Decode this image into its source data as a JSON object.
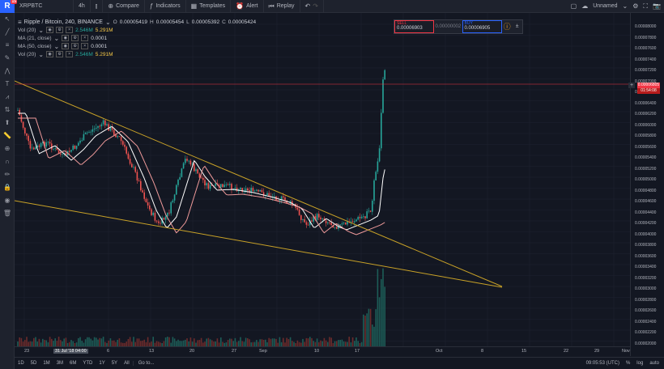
{
  "app": {
    "logo_letter": "R",
    "badge": "15"
  },
  "toolbar": {
    "symbol": "XRPBTC",
    "interval": "4h",
    "compare": "Compare",
    "indicators": "Indicators",
    "templates": "Templates",
    "alert": "Alert",
    "replay": "Replay",
    "layout_name": "Unnamed"
  },
  "legend": {
    "title": "Ripple / Bitcoin, 240, BINANCE",
    "o_label": "O",
    "o_val": "0.00005419",
    "h_label": "H",
    "h_val": "0.00005454",
    "l_label": "L",
    "l_val": "0.00005392",
    "c_label": "C",
    "c_val": "0.00005424",
    "rows": [
      {
        "name": "Vol (20)",
        "v1": "2.546M",
        "v2": "5.291M"
      },
      {
        "name": "MA (21, close)",
        "v1": "0.0001",
        "v2": ""
      },
      {
        "name": "MA (50, close)",
        "v1": "0.0001",
        "v2": ""
      },
      {
        "name": "Vol (20)",
        "v1": "2.546M",
        "v2": "5.291M"
      }
    ]
  },
  "trade": {
    "sell_label": "SELL",
    "sell_price": "0.00006903",
    "spread": "0.00000002",
    "buy_label": "BUY",
    "buy_price": "0.00006905"
  },
  "price_axis": {
    "labels": [
      "0.00008000",
      "0.00007800",
      "0.00007600",
      "0.00007400",
      "0.00007200",
      "0.00007000",
      "0.00006600",
      "0.00006400",
      "0.00006200",
      "0.00006000",
      "0.00005800",
      "0.00005600",
      "0.00005400",
      "0.00005200",
      "0.00005000",
      "0.00004800",
      "0.00004600",
      "0.00004400",
      "0.00004200",
      "0.00004000",
      "0.00003800",
      "0.00003600",
      "0.00003400",
      "0.00003200",
      "0.00003000",
      "0.00002800",
      "0.00002600",
      "0.00002400",
      "0.00002200",
      "0.00002000"
    ],
    "current": "0.00006805",
    "countdown": "01:54:08"
  },
  "time_axis": {
    "labels": [
      "23",
      "6",
      "13",
      "20",
      "27",
      "Sep",
      "10",
      "17",
      "Oct",
      "8",
      "15",
      "22",
      "29",
      "Nov"
    ],
    "crosshair": "31 Jul '18  04:00"
  },
  "bottombar": {
    "ranges": [
      "1D",
      "5D",
      "1M",
      "3M",
      "6M",
      "YTD",
      "1Y",
      "5Y",
      "All"
    ],
    "goto": "Go to...",
    "time": "09:05:53 (UTC)",
    "pct": "%",
    "log": "log",
    "auto": "auto"
  },
  "colors": {
    "up": "#26a69a",
    "down": "#ef5350",
    "trend": "#c9a227",
    "ma21": "#ffffff",
    "ma50": "#ef9a9a"
  }
}
